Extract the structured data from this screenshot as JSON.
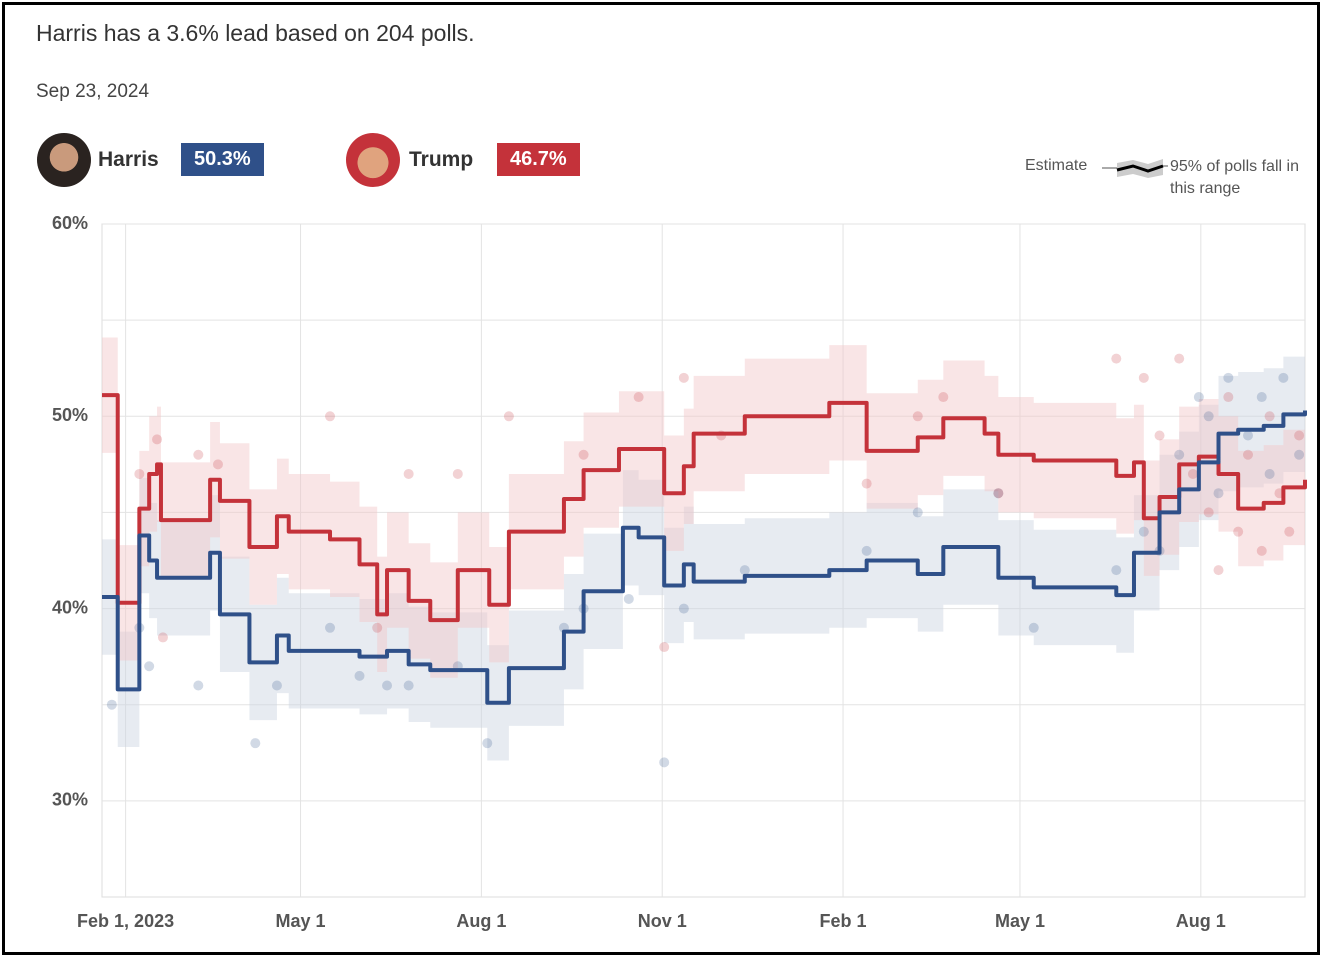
{
  "chart_data": {
    "type": "line",
    "title": "Harris has a 3.6% lead based on 204 polls.",
    "subtitle": "Sep 23, 2024",
    "legend": {
      "estimate": "Estimate",
      "range": "95% of polls fall in this range"
    },
    "step": "after",
    "grid": true,
    "xlim": [
      "2023-01-20",
      "2024-09-23"
    ],
    "xticks": [
      {
        "value": "2023-02-01",
        "label": "Feb 1, 2023"
      },
      {
        "value": "2023-05-01",
        "label": "May 1"
      },
      {
        "value": "2023-08-01",
        "label": "Aug 1"
      },
      {
        "value": "2023-11-01",
        "label": "Nov 1"
      },
      {
        "value": "2024-02-01",
        "label": "Feb 1"
      },
      {
        "value": "2024-05-01",
        "label": "May 1"
      },
      {
        "value": "2024-08-01",
        "label": "Aug 1"
      }
    ],
    "ylim": [
      25,
      60
    ],
    "yticks": [
      {
        "value": 30,
        "label": "30%"
      },
      {
        "value": 40,
        "label": "40%"
      },
      {
        "value": 50,
        "label": "50%"
      },
      {
        "value": 60,
        "label": "60%"
      }
    ],
    "ygrid_minor": [
      35,
      45,
      55
    ],
    "series": [
      {
        "name": "Harris",
        "color": "#2f5089",
        "band_color": "#c9d2e0",
        "latest_label": "50.3%",
        "x": [
          "2023-01-20",
          "2023-01-28",
          "2023-02-08",
          "2023-02-13",
          "2023-02-17",
          "2023-03-16",
          "2023-03-21",
          "2023-04-05",
          "2023-04-19",
          "2023-04-25",
          "2023-05-31",
          "2023-06-14",
          "2023-06-25",
          "2023-07-06",
          "2023-08-04",
          "2023-08-15",
          "2023-09-12",
          "2023-09-22",
          "2023-10-12",
          "2023-10-20",
          "2023-11-02",
          "2023-11-12",
          "2023-11-17",
          "2023-12-13",
          "2024-01-25",
          "2024-02-13",
          "2024-03-10",
          "2024-03-23",
          "2024-04-20",
          "2024-05-08",
          "2024-06-19",
          "2024-06-28",
          "2024-07-11",
          "2024-07-21",
          "2024-07-31",
          "2024-08-10",
          "2024-08-20",
          "2024-09-02",
          "2024-09-12",
          "2024-09-23"
        ],
        "values": [
          40.6,
          35.8,
          43.8,
          42.5,
          41.6,
          42.9,
          39.7,
          37.2,
          38.6,
          37.8,
          37.5,
          37.8,
          37.1,
          36.8,
          35.1,
          36.9,
          38.8,
          40.9,
          44.2,
          43.7,
          41.2,
          42.3,
          41.4,
          41.7,
          42.0,
          42.5,
          41.8,
          43.2,
          41.6,
          41.1,
          40.7,
          42.9,
          45.0,
          46.2,
          47.6,
          49.1,
          49.3,
          49.5,
          50.1,
          50.3
        ],
        "upper": [
          43.6,
          38.8,
          46.8,
          45.5,
          44.6,
          45.9,
          42.7,
          40.2,
          41.6,
          40.8,
          40.5,
          40.8,
          40.1,
          39.8,
          38.1,
          39.9,
          41.8,
          43.9,
          47.2,
          46.7,
          44.2,
          45.3,
          44.4,
          44.7,
          45,
          45.5,
          44.8,
          46.2,
          44.6,
          44.1,
          43.7,
          45.9,
          48,
          49.2,
          50.6,
          52.1,
          52.3,
          52.5,
          53.1,
          53.3
        ],
        "lower": [
          37.6,
          32.8,
          40.8,
          39.5,
          38.6,
          39.9,
          36.7,
          34.2,
          35.6,
          34.8,
          34.5,
          34.8,
          34.1,
          33.8,
          32.1,
          33.9,
          35.8,
          37.9,
          41.2,
          40.7,
          38.2,
          39.3,
          38.4,
          38.7,
          39,
          39.5,
          38.8,
          40.2,
          38.6,
          38.1,
          37.7,
          39.9,
          42,
          43.2,
          44.6,
          46.1,
          46.3,
          46.5,
          47.1,
          47.3
        ],
        "polls_x": [
          "2023-01-25",
          "2023-02-08",
          "2023-02-13",
          "2023-03-10",
          "2023-04-08",
          "2023-04-19",
          "2023-05-16",
          "2023-05-31",
          "2023-06-14",
          "2023-06-25",
          "2023-07-20",
          "2023-08-04",
          "2023-09-12",
          "2023-09-22",
          "2023-10-15",
          "2023-11-02",
          "2023-11-12",
          "2023-12-13",
          "2024-02-13",
          "2024-03-10",
          "2024-04-20",
          "2024-05-08",
          "2024-06-19",
          "2024-07-03",
          "2024-07-11",
          "2024-07-21",
          "2024-07-31",
          "2024-08-05",
          "2024-08-10",
          "2024-08-15",
          "2024-08-25",
          "2024-09-01",
          "2024-09-05",
          "2024-09-12",
          "2024-09-20"
        ],
        "polls_values": [
          35,
          39,
          37,
          36,
          33,
          36,
          39,
          36.5,
          36,
          36,
          37,
          33,
          39,
          40,
          40.5,
          32,
          40,
          42,
          43,
          45,
          46,
          39,
          42,
          44,
          43,
          48,
          51,
          50,
          46,
          52,
          49,
          51,
          47,
          52,
          48
        ]
      },
      {
        "name": "Trump",
        "color": "#c4323a",
        "band_color": "#f2c6c8",
        "latest_label": "46.7%",
        "x": [
          "2023-01-20",
          "2023-01-28",
          "2023-02-08",
          "2023-02-13",
          "2023-02-17",
          "2023-02-19",
          "2023-03-16",
          "2023-03-21",
          "2023-04-05",
          "2023-04-19",
          "2023-04-25",
          "2023-05-16",
          "2023-05-31",
          "2023-06-09",
          "2023-06-14",
          "2023-06-25",
          "2023-07-06",
          "2023-07-20",
          "2023-08-05",
          "2023-08-15",
          "2023-09-12",
          "2023-09-22",
          "2023-10-10",
          "2023-11-02",
          "2023-11-12",
          "2023-11-17",
          "2023-12-13",
          "2024-01-25",
          "2024-02-13",
          "2024-03-10",
          "2024-03-23",
          "2024-04-13",
          "2024-04-20",
          "2024-05-08",
          "2024-06-19",
          "2024-06-28",
          "2024-07-03",
          "2024-07-11",
          "2024-07-21",
          "2024-07-31",
          "2024-08-10",
          "2024-08-20",
          "2024-09-02",
          "2024-09-12",
          "2024-09-23"
        ],
        "values": [
          51.1,
          40.3,
          45.2,
          47.0,
          47.5,
          44.6,
          46.7,
          45.6,
          43.2,
          44.8,
          44.0,
          43.6,
          42.3,
          39.7,
          42.0,
          40.4,
          39.4,
          42.0,
          40.2,
          44.0,
          45.7,
          47.2,
          48.3,
          46.0,
          47.4,
          49.1,
          50.0,
          50.7,
          48.2,
          48.9,
          49.9,
          49.1,
          48.0,
          47.7,
          46.9,
          47.6,
          44.7,
          45.8,
          47.5,
          47.9,
          47.0,
          45.2,
          45.5,
          46.3,
          46.7
        ],
        "upper": [
          54.1,
          43.3,
          48.2,
          50,
          50.5,
          47.6,
          49.7,
          48.6,
          46.2,
          47.8,
          47,
          46.6,
          45.3,
          42.7,
          45,
          43.4,
          42.4,
          45,
          43.2,
          47,
          48.7,
          50.2,
          51.3,
          49,
          50.4,
          52.1,
          53,
          53.7,
          51.2,
          51.9,
          52.9,
          52.1,
          51,
          50.7,
          49.9,
          50.6,
          47.7,
          48.8,
          50.5,
          50.9,
          50,
          48.2,
          48.5,
          49.3,
          49.7
        ],
        "lower": [
          48.1,
          37.3,
          42.2,
          44,
          44.5,
          41.6,
          43.7,
          42.6,
          40.2,
          41.8,
          41,
          40.6,
          39.3,
          36.7,
          39,
          37.4,
          36.4,
          39,
          37.2,
          41,
          42.7,
          44.2,
          45.3,
          43,
          44.4,
          46.1,
          47,
          47.7,
          45.2,
          45.9,
          46.9,
          46.1,
          45,
          44.7,
          43.9,
          44.6,
          41.7,
          42.8,
          44.5,
          44.9,
          44,
          42.2,
          42.5,
          43.3,
          43.7
        ],
        "polls_x": [
          "2023-02-08",
          "2023-02-17",
          "2023-02-20",
          "2023-03-10",
          "2023-03-20",
          "2023-05-16",
          "2023-06-09",
          "2023-06-25",
          "2023-07-20",
          "2023-08-15",
          "2023-09-22",
          "2023-10-20",
          "2023-11-02",
          "2023-11-12",
          "2023-12-01",
          "2024-02-13",
          "2024-03-10",
          "2024-03-23",
          "2024-04-20",
          "2024-06-19",
          "2024-07-03",
          "2024-07-11",
          "2024-07-21",
          "2024-07-28",
          "2024-08-05",
          "2024-08-10",
          "2024-08-15",
          "2024-08-20",
          "2024-08-25",
          "2024-09-01",
          "2024-09-05",
          "2024-09-10",
          "2024-09-15",
          "2024-09-20"
        ],
        "polls_values": [
          47,
          48.8,
          38.5,
          48,
          47.5,
          50,
          39,
          47,
          47,
          50,
          48,
          51,
          38,
          52,
          49,
          46.5,
          50,
          51,
          46,
          53,
          52,
          49,
          53,
          47,
          45,
          42,
          51,
          44,
          48,
          43,
          50,
          46,
          44,
          49
        ]
      }
    ]
  }
}
